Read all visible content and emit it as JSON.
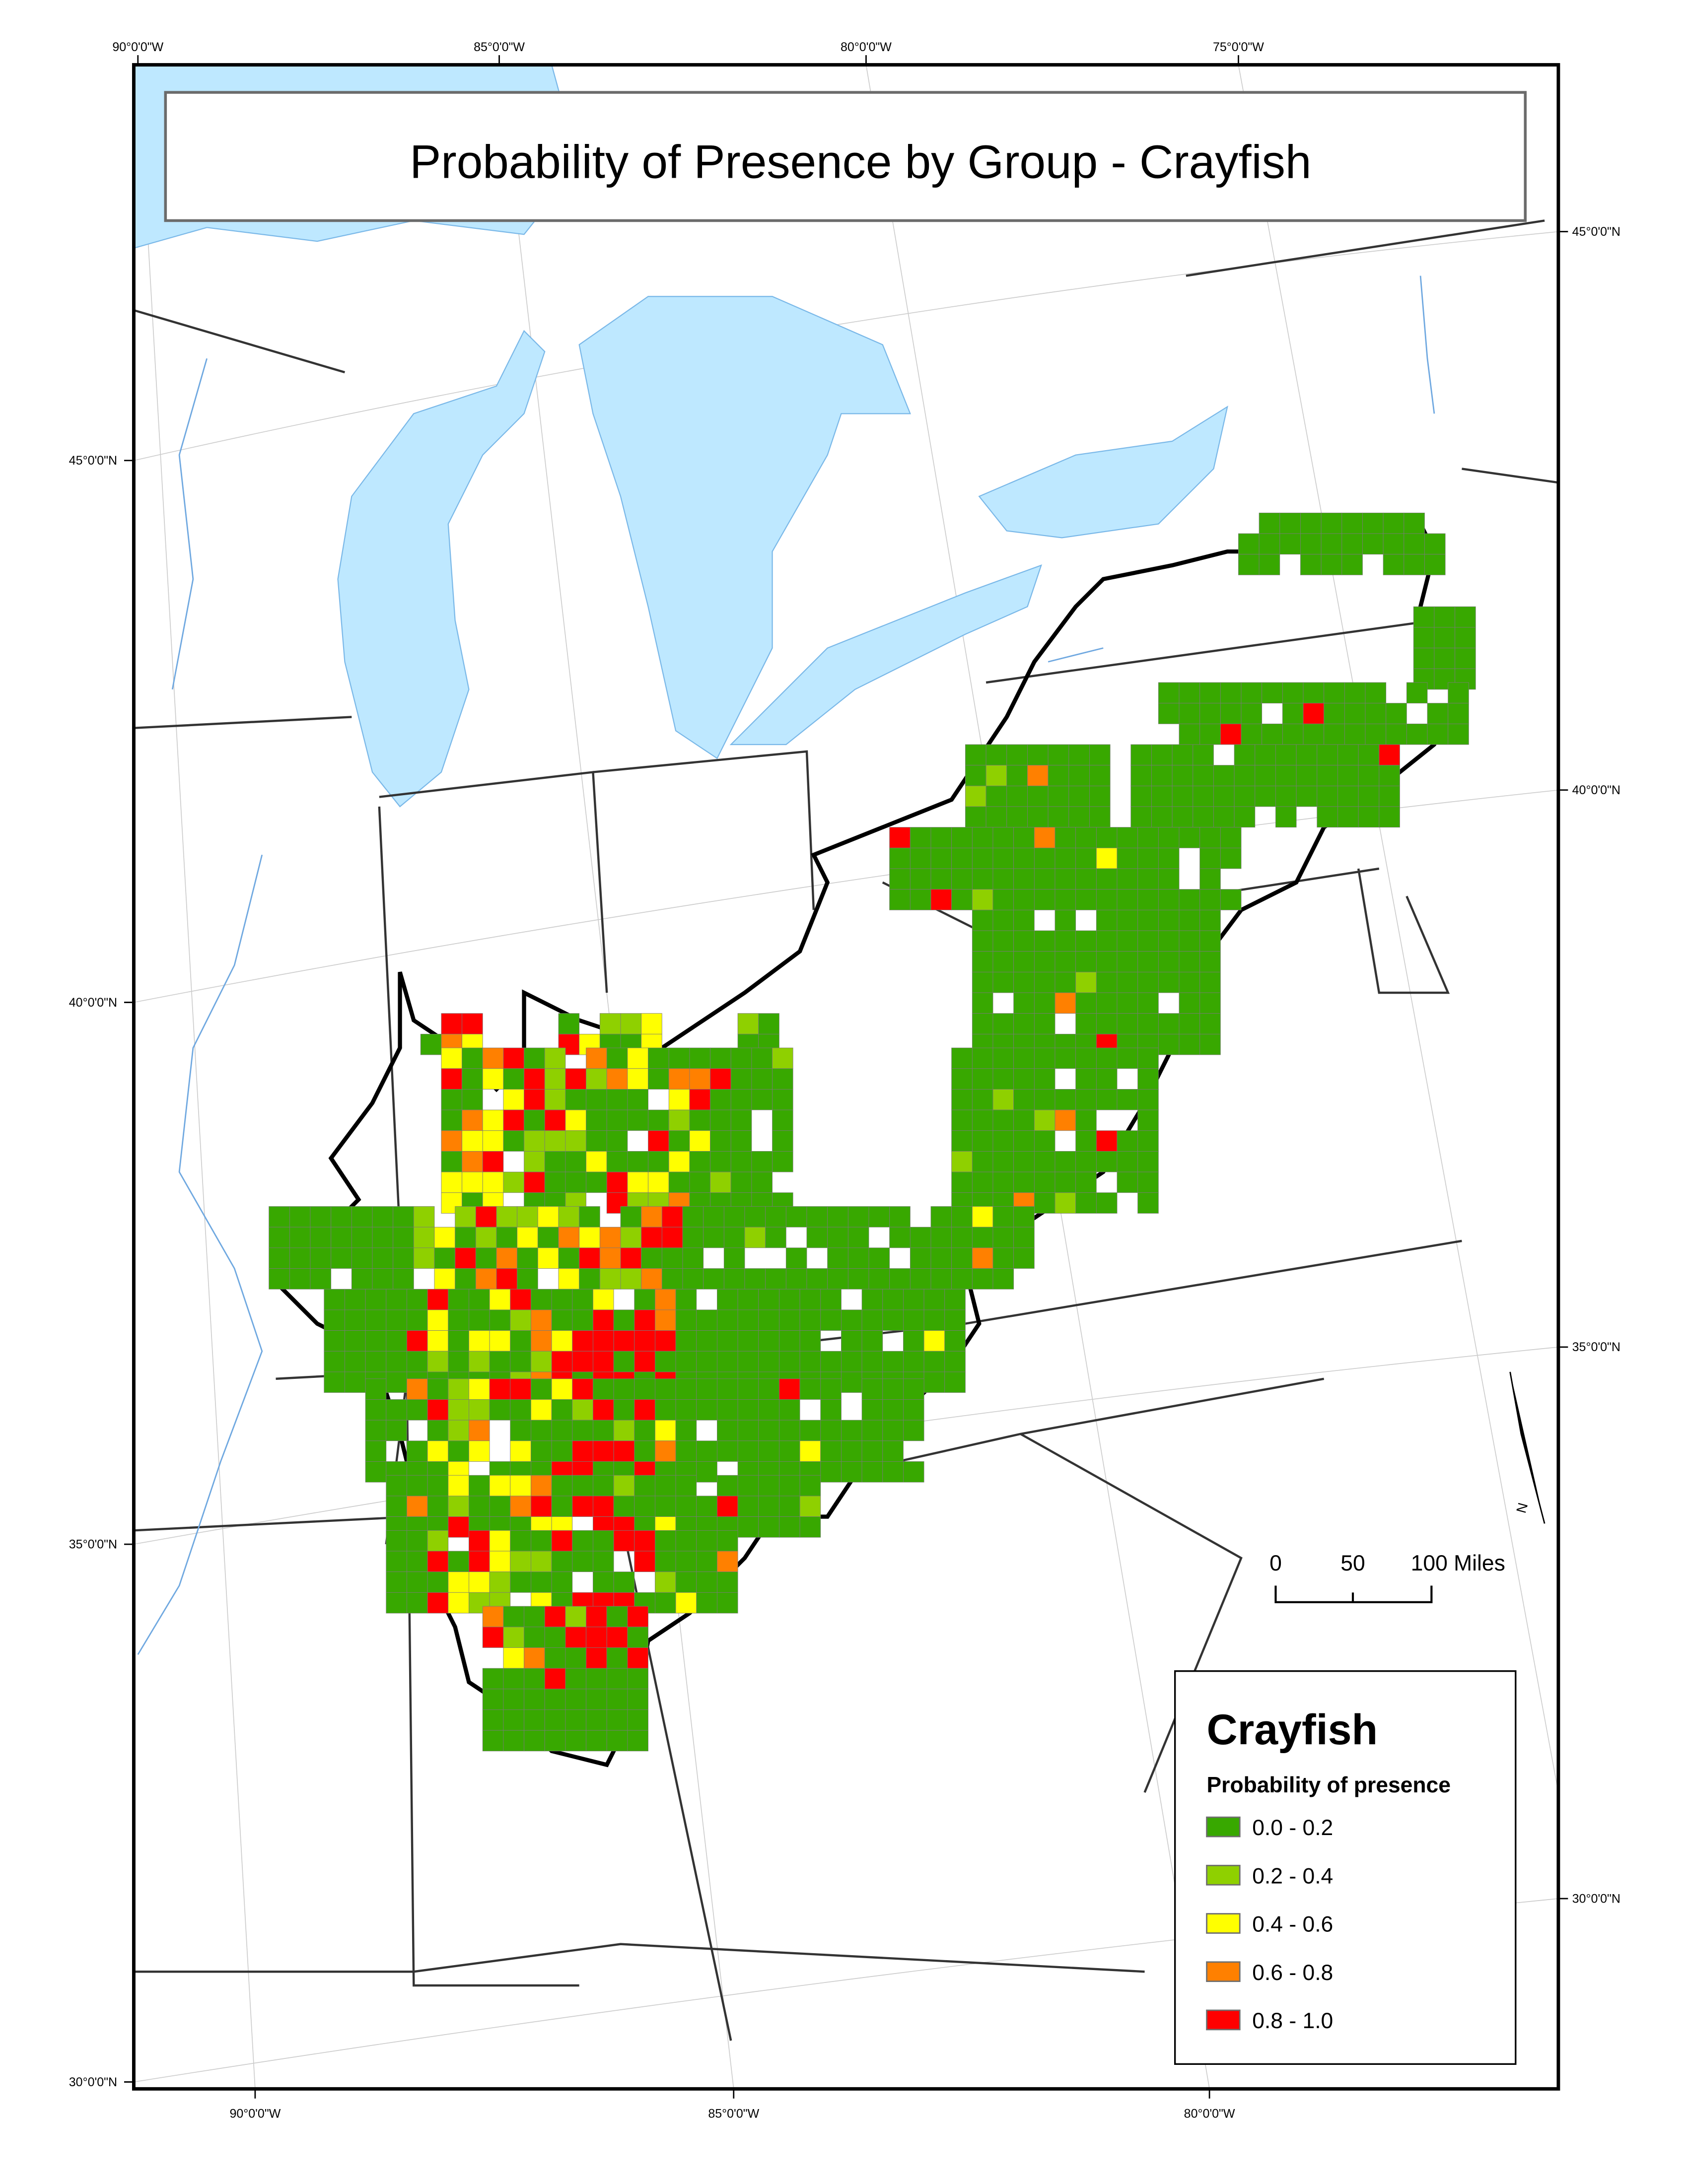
{
  "title": "Probability of Presence by Group - Crayfish",
  "graticule": {
    "top_labels": [
      "90°0'0\"W",
      "85°0'0\"W",
      "80°0'0\"W",
      "75°0'0\"W"
    ],
    "bottom_labels": [
      "90°0'0\"W",
      "85°0'0\"W",
      "80°0'0\"W"
    ],
    "left_labels": [
      "45°0'0\"N",
      "40°0'0\"N",
      "35°0'0\"N",
      "30°0'0\"N"
    ],
    "right_labels": [
      "45°0'0\"N",
      "40°0'0\"N",
      "35°0'0\"N",
      "30°0'0\"N"
    ]
  },
  "scale_bar": {
    "labels": [
      "0",
      "50",
      "100 Miles"
    ]
  },
  "north_arrow": {
    "label": "N"
  },
  "legend": {
    "title": "Crayfish",
    "subtitle": "Probability of presence",
    "classes": [
      {
        "label": "0.0 - 0.2",
        "color": "#38a800"
      },
      {
        "label": "0.2 - 0.4",
        "color": "#8fd000"
      },
      {
        "label": "0.4 - 0.6",
        "color": "#ffff00"
      },
      {
        "label": "0.6 - 0.8",
        "color": "#ff8000"
      },
      {
        "label": "0.8 - 1.0",
        "color": "#ff0000"
      }
    ]
  },
  "colors": {
    "water": "#bee8ff",
    "border": "#333333",
    "study_area": "#000000"
  }
}
